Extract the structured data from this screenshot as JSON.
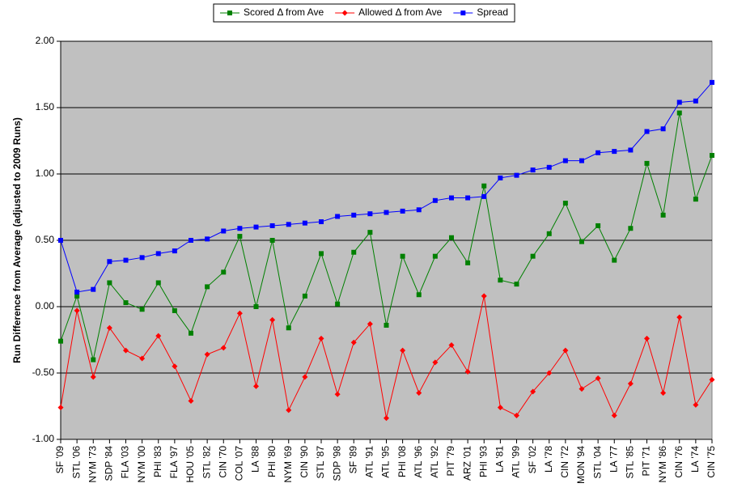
{
  "chart_data": {
    "type": "line",
    "y_label": "Run Difference from Average (adjusted to 2009 Runs)",
    "categories": [
      "SF '09",
      "STL '06",
      "NYM '73",
      "SDP '84",
      "FLA '03",
      "NYM '00",
      "PHI '83",
      "FLA '97",
      "HOU '05",
      "STL '82",
      "CIN '70",
      "COL '07",
      "LA '88",
      "PHI '80",
      "NYM '69",
      "CIN '90",
      "STL '87",
      "SDP '98",
      "SF '89",
      "ATL '91",
      "ATL '95",
      "PHI '08",
      "ATL '96",
      "ATL '92",
      "PIT '79",
      "ARZ '01",
      "PHI '93",
      "LA '81",
      "ATL '99",
      "SF '02",
      "LA '78",
      "CIN '72",
      "MON '94",
      "STL '04",
      "LA '77",
      "STL '85",
      "PIT '71",
      "NYM '86",
      "CIN '76",
      "LA '74",
      "CIN '75"
    ],
    "series": [
      {
        "name": "Scored Δ from Ave",
        "color": "#008000",
        "marker": "square",
        "values": [
          -0.26,
          0.08,
          -0.4,
          0.18,
          0.03,
          -0.02,
          0.18,
          -0.03,
          -0.2,
          0.15,
          0.26,
          0.53,
          0.0,
          0.5,
          -0.16,
          0.08,
          0.4,
          0.02,
          0.41,
          0.56,
          -0.14,
          0.38,
          0.09,
          0.38,
          0.52,
          0.33,
          0.91,
          0.2,
          0.17,
          0.38,
          0.55,
          0.78,
          0.49,
          0.61,
          0.35,
          0.59,
          1.08,
          0.69,
          1.46,
          0.81,
          1.14
        ]
      },
      {
        "name": "Allowed Δ from Ave",
        "color": "#ff0000",
        "marker": "diamond",
        "values": [
          -0.76,
          -0.03,
          -0.53,
          -0.16,
          -0.33,
          -0.39,
          -0.22,
          -0.45,
          -0.71,
          -0.36,
          -0.31,
          -0.05,
          -0.6,
          -0.1,
          -0.78,
          -0.53,
          -0.24,
          -0.66,
          -0.27,
          -0.13,
          -0.84,
          -0.33,
          -0.65,
          -0.42,
          -0.29,
          -0.49,
          0.08,
          -0.76,
          -0.82,
          -0.64,
          -0.5,
          -0.33,
          -0.62,
          -0.54,
          -0.82,
          -0.58,
          -0.24,
          -0.65,
          -0.08,
          -0.74,
          -0.55
        ]
      },
      {
        "name": "Spread",
        "color": "#0000ff",
        "marker": "square",
        "values": [
          0.5,
          0.11,
          0.13,
          0.34,
          0.35,
          0.37,
          0.4,
          0.42,
          0.5,
          0.51,
          0.57,
          0.59,
          0.6,
          0.61,
          0.62,
          0.63,
          0.64,
          0.68,
          0.69,
          0.7,
          0.71,
          0.72,
          0.73,
          0.8,
          0.82,
          0.82,
          0.83,
          0.97,
          0.99,
          1.03,
          1.05,
          1.1,
          1.1,
          1.16,
          1.17,
          1.18,
          1.32,
          1.34,
          1.54,
          1.55,
          1.69
        ]
      }
    ],
    "ylim": [
      -1,
      2
    ],
    "yticks": [
      {
        "value": -1,
        "label": "-1.00"
      },
      {
        "value": -0.5,
        "label": "-0.50"
      },
      {
        "value": 0,
        "label": "0.00"
      },
      {
        "value": 0.5,
        "label": "0.50"
      },
      {
        "value": 1,
        "label": "1.00"
      },
      {
        "value": 1.5,
        "label": "1.50"
      },
      {
        "value": 2,
        "label": "2.00"
      }
    ],
    "grid": true,
    "legend": "top",
    "plot_background": "#c0c0c0"
  }
}
